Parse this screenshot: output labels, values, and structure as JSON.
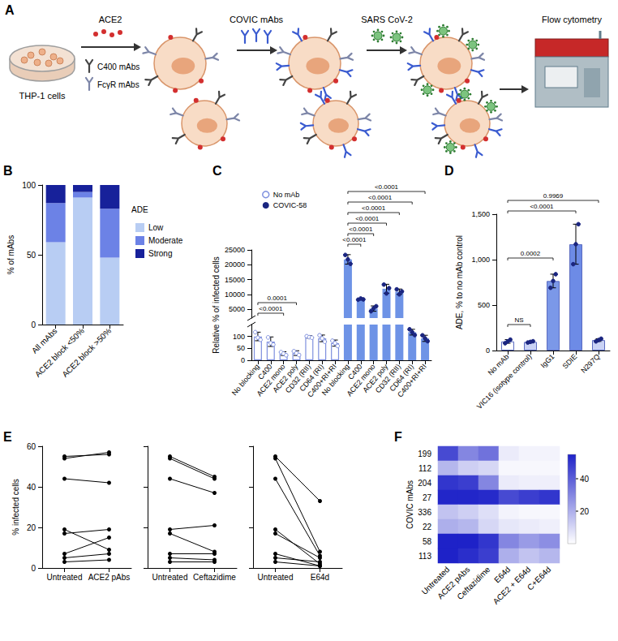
{
  "diagram": {
    "panel": "A",
    "texts": {
      "cells": "THP-1 cells",
      "ace2": "ACE2",
      "c400": "C400 mAbs",
      "fcgr": "FcγR mAbs",
      "covic": "COVIC mAbs",
      "virus": "SARS CoV-2",
      "flow": "Flow cytometry"
    }
  },
  "chart_data": [
    {
      "panel": "B",
      "type": "bar",
      "stacked": true,
      "ylabel": "% of mAbs",
      "categories": [
        "All mAbs",
        "ACE2 block <50%",
        "ACE2 block >50%"
      ],
      "series": [
        {
          "name": "Low",
          "color": "#b8cdf3",
          "values": [
            59,
            91,
            48
          ]
        },
        {
          "name": "Moderate",
          "color": "#6c82e6",
          "values": [
            28,
            4,
            35
          ]
        },
        {
          "name": "Strong",
          "color": "#17219a",
          "values": [
            13,
            5,
            17
          ]
        }
      ],
      "ylim": [
        0,
        100
      ],
      "yticks": [
        0,
        50,
        100
      ],
      "legend": "right",
      "legend_title": "ADE"
    },
    {
      "panel": "C",
      "type": "bar",
      "ylabel": "Relative % of infected cells",
      "categories": [
        "No blocking",
        "C400",
        "ACE2 mono",
        "ACE2 poly",
        "CD32 (RII)",
        "CD64 (RI)",
        "C400+RI+RI",
        "No blocking",
        "C400",
        "ACE2 mono",
        "ACE2 poly",
        "CD32 (RII)",
        "CD64 (RI)",
        "C400+RI+RI"
      ],
      "segments": [
        {
          "ylim": [
            0,
            150
          ],
          "yticks": [
            0,
            50,
            100
          ]
        },
        {
          "ylim": [
            2000,
            25000
          ],
          "yticks": [
            5000,
            10000,
            15000,
            20000,
            25000
          ]
        }
      ],
      "series": [
        {
          "name": "No mAb",
          "color": "#7f90de",
          "marker": "open_circle",
          "values": [
            100,
            78,
            28,
            30,
            98,
            92,
            72,
            null,
            null,
            null,
            null,
            null,
            null,
            null
          ],
          "errors": [
            18,
            20,
            8,
            10,
            5,
            14,
            13,
            null,
            null,
            null,
            null,
            null,
            null,
            null
          ],
          "points": [
            [
              118,
              95,
              86
            ],
            [
              96,
              72,
              66
            ],
            [
              34,
              28,
              21
            ],
            [
              38,
              30,
              22
            ],
            [
              101,
              97,
              95
            ],
            [
              105,
              92,
              78
            ],
            [
              82,
              72,
              60
            ],
            null,
            null,
            null,
            null,
            null,
            null,
            null
          ]
        },
        {
          "name": "COVIC-58",
          "color": "#6e93e6",
          "marker": "circle",
          "values": [
            null,
            null,
            null,
            null,
            null,
            null,
            null,
            21800,
            8400,
            5200,
            11900,
            10900,
            118,
            92
          ],
          "errors": [
            null,
            null,
            null,
            null,
            null,
            null,
            null,
            1600,
            250,
            900,
            1500,
            900,
            12,
            13
          ],
          "points": [
            null,
            null,
            null,
            null,
            null,
            null,
            null,
            [
              23300,
              21800,
              20300
            ],
            [
              8200,
              8600,
              8300
            ],
            [
              4300,
              5300,
              6000
            ],
            [
              13300,
              10300,
              12100
            ],
            [
              11700,
              10000,
              11000
            ],
            [
              130,
              118,
              106
            ],
            [
              105,
              92,
              80
            ]
          ]
        }
      ],
      "annotations": [
        {
          "from": 0,
          "to": 2,
          "text": "<0.0001"
        },
        {
          "from": 0,
          "to": 3,
          "text": "0.0001"
        },
        {
          "from": 7,
          "to": 8,
          "text": "<0.0001"
        },
        {
          "from": 7,
          "to": 9,
          "text": "<0.0001"
        },
        {
          "from": 7,
          "to": 10,
          "text": "<0.0001"
        },
        {
          "from": 7,
          "to": 11,
          "text": "<0.0001"
        },
        {
          "from": 7,
          "to": 12,
          "text": "<0.0001"
        },
        {
          "from": 7,
          "to": 13,
          "text": "<0.0001"
        }
      ],
      "legend": "upper left"
    },
    {
      "panel": "D",
      "type": "bar",
      "ylabel": "ADE, % to no mAb control",
      "categories": [
        "No mAb",
        "VIC16 (isotype control)",
        "IgG1",
        "SDIE",
        "N297Q"
      ],
      "values": [
        100,
        95,
        765,
        1170,
        115
      ],
      "errors": [
        20,
        7,
        75,
        220,
        15
      ],
      "points": [
        [
          80,
          100,
          120
        ],
        [
          88,
          95,
          102
        ],
        [
          690,
          765,
          840
        ],
        [
          950,
          1170,
          1390
        ],
        [
          100,
          115,
          130
        ]
      ],
      "colors": [
        "#ffffff",
        "#c9d2f5",
        "#7b98e8",
        "#6d8be6",
        "#c9d2f5"
      ],
      "marker": "circle",
      "ylim": [
        0,
        1500
      ],
      "yticks": [
        0,
        500,
        {
          "value": 1000,
          "label": "1,000"
        },
        {
          "value": 1500,
          "label": "1,500"
        }
      ],
      "annotations": [
        {
          "from": 0,
          "to": 1,
          "text": "NS"
        },
        {
          "from": 0,
          "to": 2,
          "text": "0.0002"
        },
        {
          "from": 0,
          "to": 3,
          "text": "<0.0001"
        },
        {
          "from": 0,
          "to": 4,
          "text": "0.9969"
        }
      ]
    },
    {
      "panel": "E",
      "type": "line",
      "ylabel": "% infected cells",
      "color": "#000000",
      "marker": "circle",
      "ylim": [
        0,
        60
      ],
      "yticks": [
        0,
        20,
        40,
        60
      ],
      "subpanels": [
        {
          "categories": [
            "Untreated",
            "ACE2 pAbs"
          ],
          "series": [
            {
              "values": [
                55,
                56
              ]
            },
            {
              "values": [
                54,
                57
              ]
            },
            {
              "values": [
                44,
                42
              ]
            },
            {
              "values": [
                19,
                9
              ]
            },
            {
              "values": [
                17,
                19
              ]
            },
            {
              "values": [
                7,
                15
              ]
            },
            {
              "values": [
                5,
                7
              ]
            },
            {
              "values": [
                3,
                4
              ]
            }
          ]
        },
        {
          "categories": [
            "Untreated",
            "Ceftazidime"
          ],
          "series": [
            {
              "values": [
                55,
                45
              ]
            },
            {
              "values": [
                54,
                44
              ]
            },
            {
              "values": [
                44,
                37
              ]
            },
            {
              "values": [
                19,
                21
              ]
            },
            {
              "values": [
                17,
                8
              ]
            },
            {
              "values": [
                7,
                7
              ]
            },
            {
              "values": [
                5,
                4
              ]
            },
            {
              "values": [
                3,
                3
              ]
            }
          ]
        },
        {
          "categories": [
            "Untreated",
            "E64d"
          ],
          "series": [
            {
              "values": [
                55,
                33
              ]
            },
            {
              "values": [
                54,
                8
              ]
            },
            {
              "values": [
                44,
                6
              ]
            },
            {
              "values": [
                19,
                2
              ]
            },
            {
              "values": [
                17,
                5
              ]
            },
            {
              "values": [
                7,
                1
              ]
            },
            {
              "values": [
                5,
                3
              ]
            },
            {
              "values": [
                3,
                1
              ]
            }
          ]
        }
      ]
    },
    {
      "panel": "F",
      "type": "heatmap",
      "ylabel": "COVIC mAbs",
      "categories": [
        "Untreated",
        "ACE2 pAbs",
        "Ceftazidime",
        "E64d",
        "ACE2 + E64d",
        "C+E64d"
      ],
      "rows": [
        "199",
        "112",
        "204",
        "27",
        "336",
        "22",
        "58",
        "113"
      ],
      "cells": [
        [
          45,
          30,
          35,
          5,
          3,
          3
        ],
        [
          18,
          12,
          10,
          2,
          2,
          2
        ],
        [
          50,
          48,
          30,
          5,
          4,
          4
        ],
        [
          54,
          54,
          53,
          45,
          48,
          50
        ],
        [
          15,
          12,
          8,
          3,
          2,
          2
        ],
        [
          20,
          18,
          10,
          6,
          5,
          4
        ],
        [
          55,
          55,
          50,
          30,
          25,
          28
        ],
        [
          55,
          52,
          48,
          20,
          15,
          18
        ]
      ],
      "color_range": [
        0,
        55
      ],
      "color_ticks": [
        20,
        40
      ],
      "colors": [
        "#ffffff",
        "#1e22c8"
      ]
    }
  ]
}
